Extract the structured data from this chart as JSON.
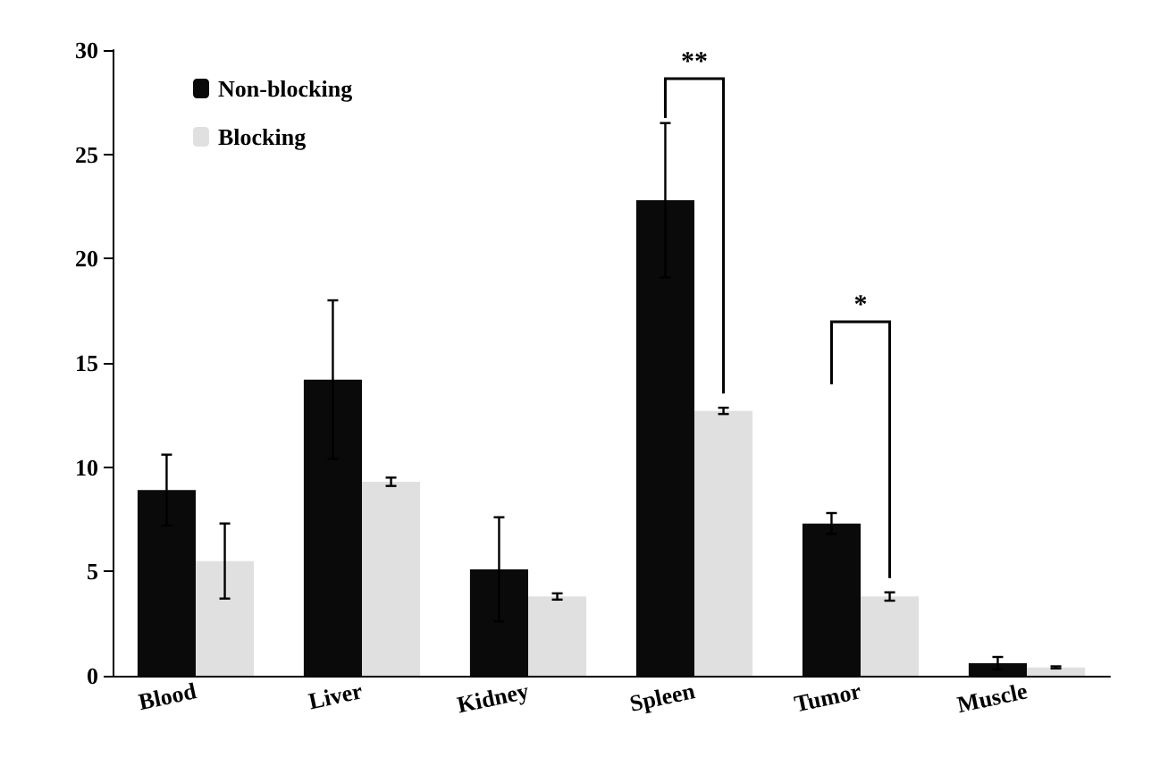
{
  "chart_data": {
    "type": "bar",
    "categories": [
      "Blood",
      "Liver",
      "Kidney",
      "Spleen",
      "Tumor",
      "Muscle"
    ],
    "series": [
      {
        "name": "Non-blocking",
        "color": "#0a0a0a",
        "values": [
          8.9,
          14.2,
          5.1,
          22.8,
          7.3,
          0.6
        ],
        "errors": [
          1.7,
          3.8,
          2.5,
          3.7,
          0.5,
          0.3
        ]
      },
      {
        "name": "Blocking",
        "color": "#e0e0e0",
        "values": [
          5.5,
          9.3,
          3.8,
          12.7,
          3.8,
          0.4
        ],
        "errors": [
          1.8,
          0.2,
          0.15,
          0.15,
          0.2,
          0.05
        ]
      }
    ],
    "ylim": [
      0,
      30
    ],
    "yticks": [
      0,
      5,
      10,
      15,
      20,
      25,
      30
    ],
    "grid": false,
    "legend": "top left",
    "annotations": [
      "**",
      "*"
    ]
  }
}
